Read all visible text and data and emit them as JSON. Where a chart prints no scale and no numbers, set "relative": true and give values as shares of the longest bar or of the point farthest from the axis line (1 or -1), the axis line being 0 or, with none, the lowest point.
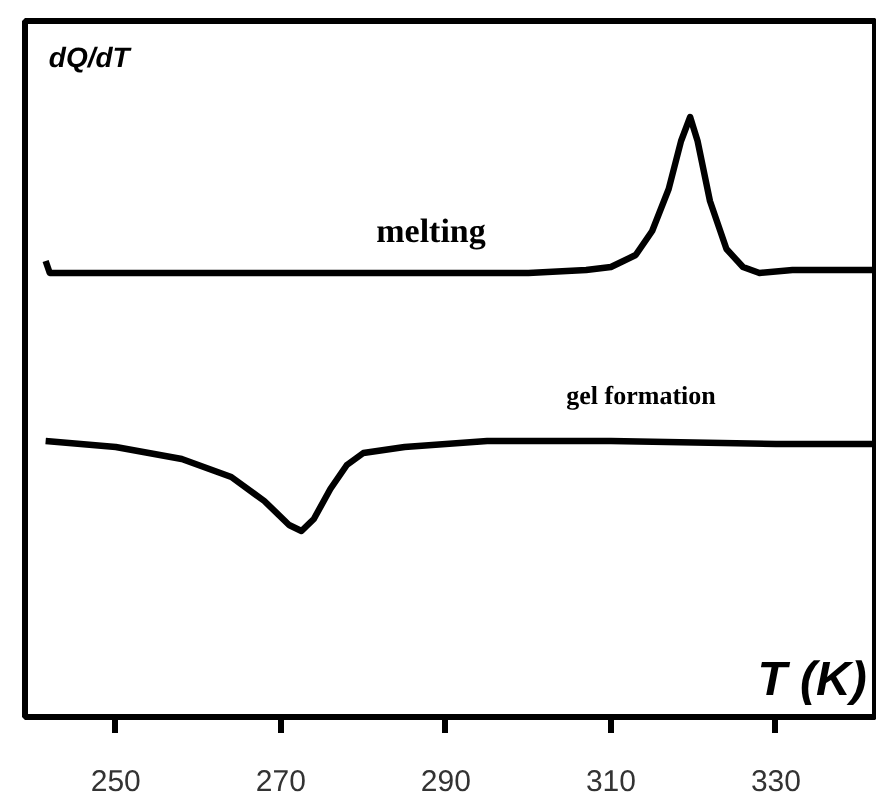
{
  "chart_data": {
    "type": "line",
    "relative": true,
    "xlabel": "T (K)",
    "ylabel": "dQ/dT",
    "xlim": [
      239,
      342
    ],
    "xticks": [
      250,
      270,
      290,
      310,
      330
    ],
    "grid": false,
    "line_style": "solid",
    "series": [
      {
        "color": "#000000",
        "x": [
          241.5,
          242,
          260,
          280,
          300,
          307,
          310,
          313,
          315,
          317,
          318.5,
          319.6,
          320.5,
          322,
          324,
          326,
          328,
          332,
          336,
          342
        ],
        "values": [
          0.76,
          0.74,
          0.74,
          0.74,
          0.74,
          0.745,
          0.75,
          0.77,
          0.81,
          0.88,
          0.96,
          1.0,
          0.96,
          0.86,
          0.78,
          0.75,
          0.74,
          0.745,
          0.745,
          0.745
        ]
      },
      {
        "color": "#000000",
        "x": [
          241.5,
          250,
          258,
          264,
          268,
          271,
          272.5,
          274,
          276,
          278,
          280,
          285,
          295,
          310,
          330,
          342
        ],
        "values": [
          0.46,
          0.45,
          0.43,
          0.4,
          0.36,
          0.32,
          0.31,
          0.33,
          0.38,
          0.42,
          0.44,
          0.45,
          0.46,
          0.46,
          0.455,
          0.455
        ]
      }
    ],
    "annotations": [
      "melting",
      "gel formation"
    ]
  }
}
